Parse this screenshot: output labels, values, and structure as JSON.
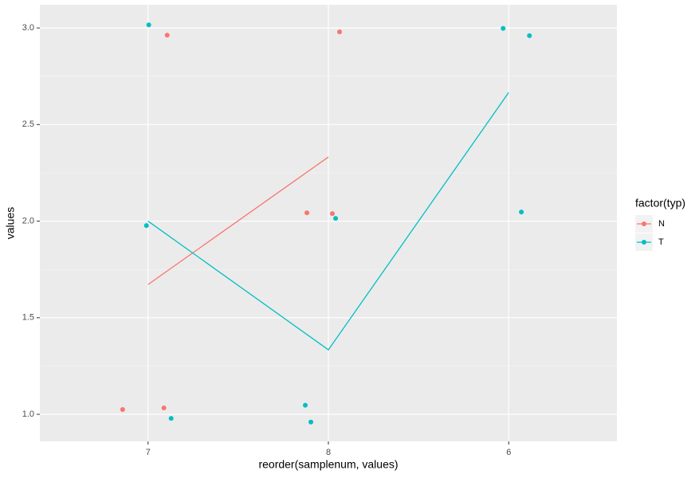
{
  "chart_data": {
    "type": "scatter",
    "x_label": "reorder(samplenum, values)",
    "y_label": "values",
    "legend_title": "factor(typ)",
    "legend_position": "right",
    "grid": true,
    "xlim": [
      0.4,
      3.6
    ],
    "xticks": [
      {
        "value": 1,
        "label": "7"
      },
      {
        "value": 2,
        "label": "8"
      },
      {
        "value": 3,
        "label": "6"
      }
    ],
    "ylim": [
      0.86,
      3.12
    ],
    "yticks": [
      {
        "value": 1,
        "label": "1.0"
      },
      {
        "value": 1.5,
        "label": "1.5"
      },
      {
        "value": 2,
        "label": "2.0"
      },
      {
        "value": 2.5,
        "label": "2.5"
      },
      {
        "value": 3,
        "label": "3.0"
      }
    ],
    "series": [
      {
        "name": "N",
        "color": "#f8766d",
        "x": [
          0.859,
          1.106,
          1.088,
          1.881,
          2.022,
          2.062
        ],
        "values": [
          1.025,
          2.963,
          1.033,
          2.043,
          2.039,
          2.98
        ],
        "line_x": [
          1,
          2
        ],
        "line_values": [
          1.672,
          2.332
        ]
      },
      {
        "name": "T",
        "color": "#00bfc4",
        "x": [
          1.004,
          0.991,
          1.128,
          1.872,
          1.903,
          2.04,
          2.969,
          3.115,
          3.07
        ],
        "values": [
          3.016,
          1.977,
          0.979,
          1.047,
          0.96,
          2.014,
          2.998,
          2.96,
          2.047
        ],
        "line_x": [
          1,
          2,
          3
        ],
        "line_values": [
          2.0,
          1.334,
          2.666
        ]
      }
    ]
  }
}
